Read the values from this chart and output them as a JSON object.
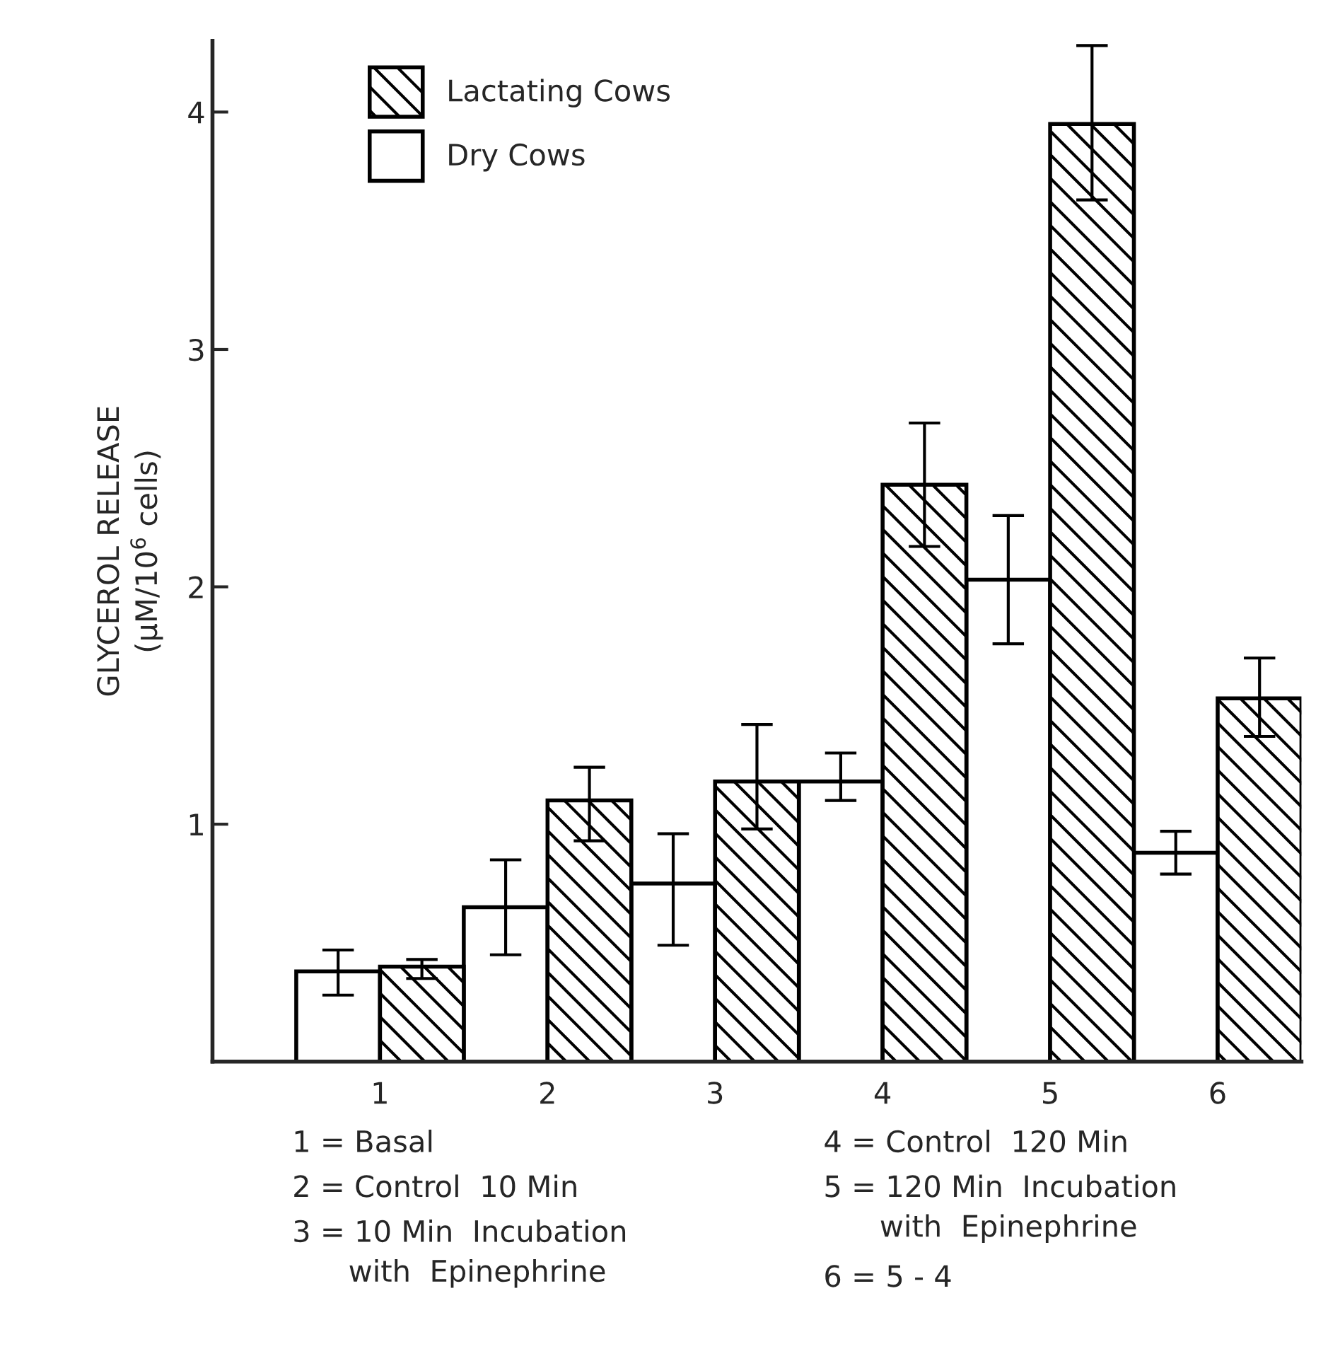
{
  "chart_data": {
    "type": "bar",
    "ylabel": "GLYCEROL RELEASE\n(μM/10$^{6}$ cells)",
    "categories": [
      "1",
      "2",
      "3",
      "4",
      "5",
      "6"
    ],
    "series": [
      {
        "name": "Dry Cows",
        "color": "#ffffff",
        "values": [
          0.38,
          0.65,
          0.75,
          1.18,
          2.03,
          0.88
        ],
        "errors": [
          [
            0.28,
            0.47
          ],
          [
            0.45,
            0.85
          ],
          [
            0.49,
            0.96
          ],
          [
            1.1,
            1.3
          ],
          [
            1.76,
            2.3
          ],
          [
            0.79,
            0.97
          ]
        ]
      },
      {
        "name": "Lactating Cows",
        "color": "#000000",
        "values": [
          0.4,
          1.1,
          1.18,
          2.43,
          3.95,
          1.53
        ],
        "errors": [
          [
            0.35,
            0.43
          ],
          [
            0.93,
            1.24
          ],
          [
            0.98,
            1.42
          ],
          [
            2.17,
            2.69
          ],
          [
            3.63,
            4.28
          ],
          [
            1.37,
            1.7
          ]
        ]
      }
    ],
    "ylim": [
      0,
      4.3
    ],
    "yticks": [
      1,
      2,
      3,
      4
    ],
    "legend": "top left",
    "grid": false,
    "annotations": [
      "1 = Basal",
      "2 = Control  10 Min",
      "3 = 10 Min  Incubation\n      with  Epinephrine",
      "4 = Control  120 Min",
      "5 = 120 Min  Incubation\n      with  Epinephrine",
      "6 = 5 - 4"
    ]
  }
}
